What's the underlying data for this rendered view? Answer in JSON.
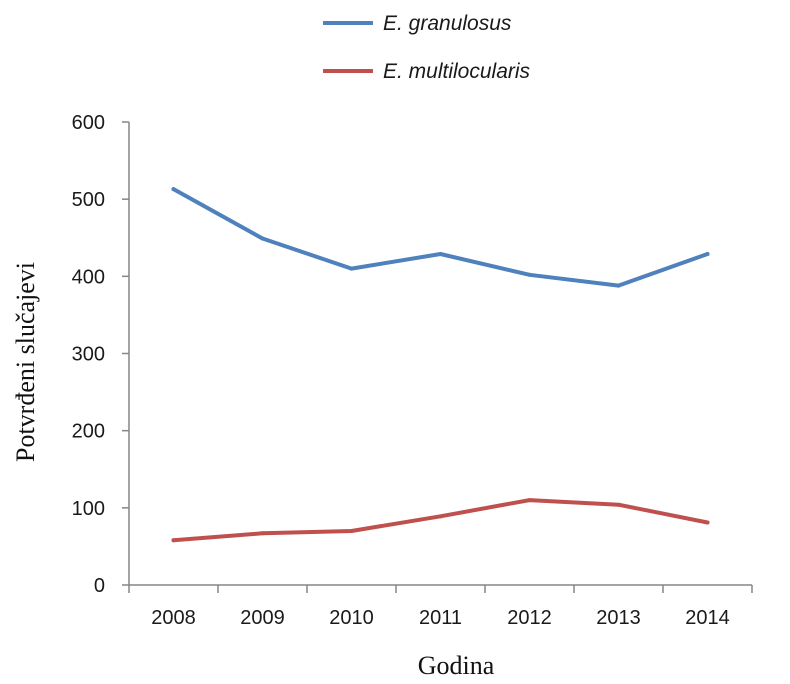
{
  "chart_data": {
    "type": "line",
    "x": [
      "2008",
      "2009",
      "2010",
      "2011",
      "2012",
      "2013",
      "2014"
    ],
    "series": [
      {
        "name": "E. granulosus",
        "color": "#4F81BD",
        "values": [
          513,
          449,
          410,
          429,
          402,
          388,
          429
        ]
      },
      {
        "name": "E. multilocularis",
        "color": "#C0504D",
        "values": [
          58,
          67,
          70,
          89,
          110,
          104,
          81
        ]
      }
    ],
    "xlabel": "Godina",
    "ylabel": "Potvrđeni slučajevi",
    "ylim": [
      0,
      600
    ],
    "yticks": [
      "0",
      "100",
      "200",
      "300",
      "400",
      "500",
      "600"
    ],
    "grid": false,
    "legend_position": "top-center",
    "axis_color": "#868686"
  }
}
